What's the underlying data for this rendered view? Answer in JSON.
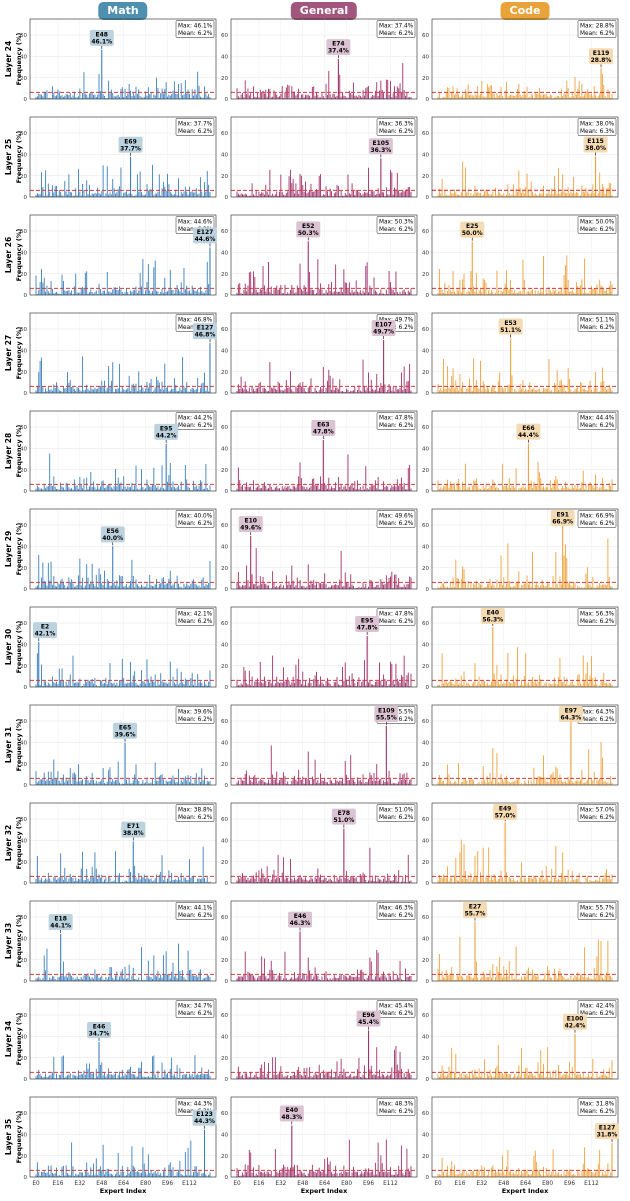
{
  "figure": {
    "headers": [
      {
        "key": "math",
        "label": "Math",
        "color": "#4f8fb0"
      },
      {
        "key": "general",
        "label": "General",
        "color": "#a3567d"
      },
      {
        "key": "code",
        "label": "Code",
        "color": "#e8a43a"
      }
    ],
    "bar_colors": {
      "math": "#3b7fbd",
      "general": "#a0306a",
      "code": "#eda23c"
    },
    "label_bg": {
      "math": "#bcd3df",
      "general": "#dcc3d3",
      "code": "#f5dbb3"
    },
    "mean_line_color": "#d93a3a",
    "xlabel": "Expert Index",
    "ylabel": "Frequency (%)",
    "x_ticks": [
      "E0",
      "E16",
      "E32",
      "E48",
      "E64",
      "E80",
      "E96",
      "E112"
    ],
    "y_ticks": [
      "0",
      "20",
      "40",
      "60"
    ],
    "stat_labels": {
      "max": "Max:",
      "mean": "Mean:"
    }
  },
  "chart_data": {
    "type": "bar",
    "num_experts": 128,
    "ylim": [
      0,
      75
    ],
    "rows": [
      {
        "layer": "Layer 24",
        "cells": [
          {
            "max": "46.1%",
            "mean": "6.2%",
            "peak_label": "E48",
            "peak_expert": 48,
            "peak_value": 46.1,
            "peak_text": "46.1%"
          },
          {
            "max": "37.4%",
            "mean": "6.2%",
            "peak_label": "E74",
            "peak_expert": 74,
            "peak_value": 37.4,
            "peak_text": "37.4%"
          },
          {
            "max": "28.8%",
            "mean": "6.2%",
            "peak_label": "E119",
            "peak_expert": 119,
            "peak_value": 28.8,
            "peak_text": "28.8%"
          }
        ]
      },
      {
        "layer": "Layer 25",
        "cells": [
          {
            "max": "37.7%",
            "mean": "6.2%",
            "peak_label": "E69",
            "peak_expert": 69,
            "peak_value": 37.7,
            "peak_text": "37.7%"
          },
          {
            "max": "36.3%",
            "mean": "6.2%",
            "peak_label": "E105",
            "peak_expert": 105,
            "peak_value": 36.3,
            "peak_text": "36.3%"
          },
          {
            "max": "38.0%",
            "mean": "6.3%",
            "peak_label": "E115",
            "peak_expert": 115,
            "peak_value": 38.0,
            "peak_text": "38.0%"
          }
        ]
      },
      {
        "layer": "Layer 26",
        "cells": [
          {
            "max": "44.6%",
            "mean": "6.2%",
            "peak_label": "E127",
            "peak_expert": 127,
            "peak_value": 44.6,
            "peak_text": "44.6%"
          },
          {
            "max": "50.3%",
            "mean": "6.2%",
            "peak_label": "E52",
            "peak_expert": 52,
            "peak_value": 50.3,
            "peak_text": "50.3%"
          },
          {
            "max": "50.0%",
            "mean": "6.2%",
            "peak_label": "E25",
            "peak_expert": 25,
            "peak_value": 50.0,
            "peak_text": "50.0%"
          }
        ]
      },
      {
        "layer": "Layer 27",
        "cells": [
          {
            "max": "46.8%",
            "mean": "6.2%",
            "peak_label": "E127",
            "peak_expert": 127,
            "peak_value": 46.8,
            "peak_text": "46.8%"
          },
          {
            "max": "49.7%",
            "mean": "6.2%",
            "peak_label": "E107",
            "peak_expert": 107,
            "peak_value": 49.7,
            "peak_text": "49.7%"
          },
          {
            "max": "51.1%",
            "mean": "6.2%",
            "peak_label": "E53",
            "peak_expert": 53,
            "peak_value": 51.1,
            "peak_text": "51.1%"
          }
        ]
      },
      {
        "layer": "Layer 28",
        "cells": [
          {
            "max": "44.2%",
            "mean": "6.2%",
            "peak_label": "E95",
            "peak_expert": 95,
            "peak_value": 44.2,
            "peak_text": "44.2%"
          },
          {
            "max": "47.8%",
            "mean": "6.2%",
            "peak_label": "E63",
            "peak_expert": 63,
            "peak_value": 47.8,
            "peak_text": "47.8%"
          },
          {
            "max": "44.4%",
            "mean": "6.2%",
            "peak_label": "E66",
            "peak_expert": 66,
            "peak_value": 44.4,
            "peak_text": "44.4%"
          }
        ]
      },
      {
        "layer": "Layer 29",
        "cells": [
          {
            "max": "40.0%",
            "mean": "6.2%",
            "peak_label": "E56",
            "peak_expert": 56,
            "peak_value": 40.0,
            "peak_text": "40.0%"
          },
          {
            "max": "49.6%",
            "mean": "6.2%",
            "peak_label": "E10",
            "peak_expert": 10,
            "peak_value": 49.6,
            "peak_text": "49.6%"
          },
          {
            "max": "66.9%",
            "mean": "6.2%",
            "peak_label": "E91",
            "peak_expert": 91,
            "peak_value": 66.9,
            "peak_text": "66.9%"
          }
        ]
      },
      {
        "layer": "Layer 30",
        "cells": [
          {
            "max": "42.1%",
            "mean": "6.2%",
            "peak_label": "E2",
            "peak_expert": 2,
            "peak_value": 42.1,
            "peak_text": "42.1%"
          },
          {
            "max": "47.8%",
            "mean": "6.2%",
            "peak_label": "E95",
            "peak_expert": 95,
            "peak_value": 47.8,
            "peak_text": "47.8%"
          },
          {
            "max": "56.3%",
            "mean": "6.2%",
            "peak_label": "E40",
            "peak_expert": 40,
            "peak_value": 56.3,
            "peak_text": "56.3%"
          }
        ]
      },
      {
        "layer": "Layer 31",
        "cells": [
          {
            "max": "39.6%",
            "mean": "6.2%",
            "peak_label": "E65",
            "peak_expert": 65,
            "peak_value": 39.6,
            "peak_text": "39.6%"
          },
          {
            "max": "55.5%",
            "mean": "6.2%",
            "peak_label": "E109",
            "peak_expert": 109,
            "peak_value": 55.5,
            "peak_text": "55.5%"
          },
          {
            "max": "64.3%",
            "mean": "6.2%",
            "peak_label": "E97",
            "peak_expert": 97,
            "peak_value": 64.3,
            "peak_text": "64.3%"
          }
        ]
      },
      {
        "layer": "Layer 32",
        "cells": [
          {
            "max": "38.8%",
            "mean": "6.2%",
            "peak_label": "E71",
            "peak_expert": 71,
            "peak_value": 38.8,
            "peak_text": "38.8%"
          },
          {
            "max": "51.0%",
            "mean": "6.2%",
            "peak_label": "E78",
            "peak_expert": 78,
            "peak_value": 51.0,
            "peak_text": "51.0%"
          },
          {
            "max": "57.0%",
            "mean": "6.2%",
            "peak_label": "E49",
            "peak_expert": 49,
            "peak_value": 57.0,
            "peak_text": "57.0%"
          }
        ]
      },
      {
        "layer": "Layer 33",
        "cells": [
          {
            "max": "44.1%",
            "mean": "6.2%",
            "peak_label": "E18",
            "peak_expert": 18,
            "peak_value": 44.1,
            "peak_text": "44.1%"
          },
          {
            "max": "46.3%",
            "mean": "6.2%",
            "peak_label": "E46",
            "peak_expert": 46,
            "peak_value": 46.3,
            "peak_text": "46.3%"
          },
          {
            "max": "55.7%",
            "mean": "6.2%",
            "peak_label": "E27",
            "peak_expert": 27,
            "peak_value": 55.7,
            "peak_text": "55.7%"
          }
        ]
      },
      {
        "layer": "Layer 34",
        "cells": [
          {
            "max": "34.7%",
            "mean": "6.2%",
            "peak_label": "E46",
            "peak_expert": 46,
            "peak_value": 34.7,
            "peak_text": "34.7%"
          },
          {
            "max": "45.4%",
            "mean": "6.2%",
            "peak_label": "E96",
            "peak_expert": 96,
            "peak_value": 45.4,
            "peak_text": "45.4%"
          },
          {
            "max": "42.4%",
            "mean": "6.2%",
            "peak_label": "E100",
            "peak_expert": 100,
            "peak_value": 42.4,
            "peak_text": "42.4%"
          }
        ]
      },
      {
        "layer": "Layer 35",
        "cells": [
          {
            "max": "44.3%",
            "mean": "6.2%",
            "peak_label": "E123",
            "peak_expert": 123,
            "peak_value": 44.3,
            "peak_text": "44.3%"
          },
          {
            "max": "48.3%",
            "mean": "6.2%",
            "peak_label": "E40",
            "peak_expert": 40,
            "peak_value": 48.3,
            "peak_text": "48.3%"
          },
          {
            "max": "31.8%",
            "mean": "6.2%",
            "peak_label": "E127",
            "peak_expert": 127,
            "peak_value": 31.8,
            "peak_text": "31.8%"
          }
        ]
      }
    ]
  }
}
